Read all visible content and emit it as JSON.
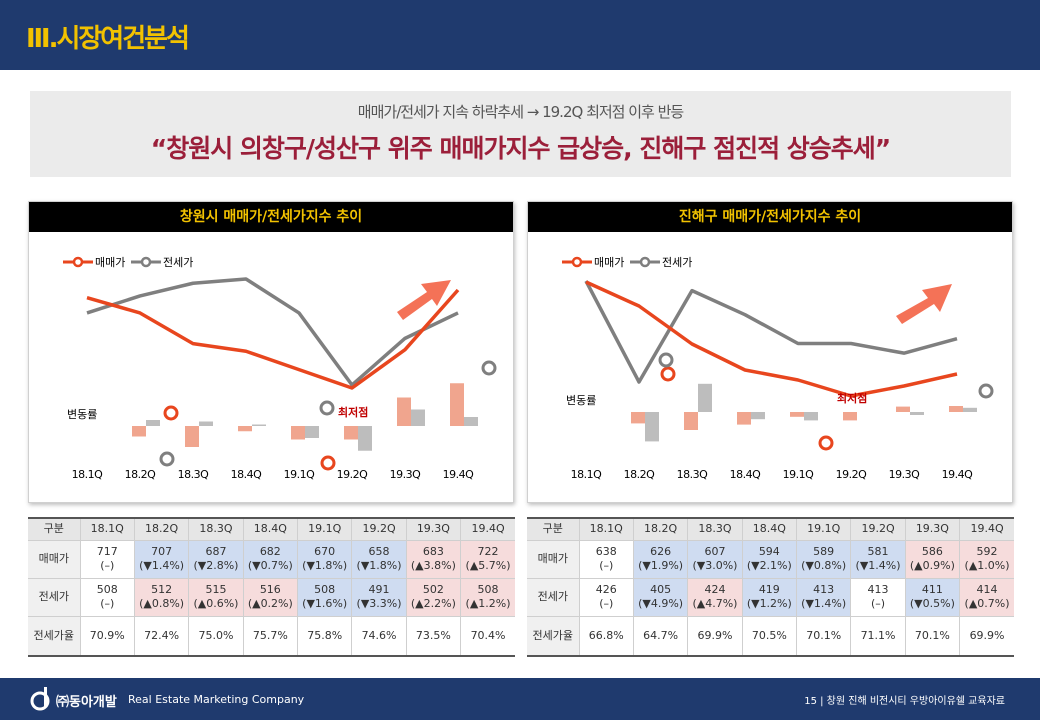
{
  "header": {
    "title": "Ⅲ.시장여건분석"
  },
  "banner": {
    "subtitle": "매매가/전세가 지속 하락추세 → 19.2Q 최저점 이후 반등",
    "headline": "“창원시 의창구/성산구 위주 매매가지수 급상승, 진해구 점진적 상승추세”"
  },
  "colors": {
    "sale": "#e8461e",
    "jeonse": "#7f7f7f",
    "up": "#f6dcdc",
    "down": "#cfdcf1",
    "accent": "#f2c200",
    "navy": "#1f3a6e"
  },
  "chart_data": [
    {
      "type": "line",
      "title": "창원시 매매가/전세가지수 추이",
      "categories": [
        "18.1Q",
        "18.2Q",
        "18.3Q",
        "18.4Q",
        "19.1Q",
        "19.2Q",
        "19.3Q",
        "19.4Q"
      ],
      "series": [
        {
          "name": "매매가",
          "values": [
            717,
            707,
            687,
            682,
            670,
            658,
            683,
            722
          ],
          "change": [
            0,
            -1.4,
            -2.8,
            -0.7,
            -1.8,
            -1.8,
            3.8,
            5.7
          ]
        },
        {
          "name": "전세가",
          "values": [
            508,
            512,
            515,
            516,
            508,
            491,
            502,
            508
          ],
          "change": [
            0,
            0.8,
            0.6,
            0.2,
            -1.6,
            -3.3,
            2.2,
            1.2
          ]
        }
      ],
      "change_label": "변동률",
      "low_label": "최저점",
      "low_index": 5
    },
    {
      "type": "line",
      "title": "진해구 매매가/전세가지수 추이",
      "categories": [
        "18.1Q",
        "18.2Q",
        "18.3Q",
        "18.4Q",
        "19.1Q",
        "19.2Q",
        "19.3Q",
        "19.4Q"
      ],
      "series": [
        {
          "name": "매매가",
          "values": [
            638,
            626,
            607,
            594,
            589,
            581,
            586,
            592
          ],
          "change": [
            0,
            -1.9,
            -3.0,
            -2.1,
            -0.8,
            -1.4,
            0.9,
            1.0
          ]
        },
        {
          "name": "전세가",
          "values": [
            426,
            405,
            424,
            419,
            413,
            413,
            411,
            414
          ],
          "change": [
            0,
            -4.9,
            4.7,
            -1.2,
            -1.4,
            0,
            -0.5,
            0.7
          ]
        }
      ],
      "change_label": "변동률",
      "low_label": "최저점",
      "low_index": 5
    }
  ],
  "tables": [
    {
      "header": [
        "구분",
        "18.1Q",
        "18.2Q",
        "18.3Q",
        "18.4Q",
        "19.1Q",
        "19.2Q",
        "19.3Q",
        "19.4Q"
      ],
      "rows": [
        {
          "label": "매매가",
          "cells": [
            {
              "v": "717",
              "c": "(–)",
              "t": ""
            },
            {
              "v": "707",
              "c": "(▼1.4%)",
              "t": "dn"
            },
            {
              "v": "687",
              "c": "(▼2.8%)",
              "t": "dn"
            },
            {
              "v": "682",
              "c": "(▼0.7%)",
              "t": "dn"
            },
            {
              "v": "670",
              "c": "(▼1.8%)",
              "t": "dn"
            },
            {
              "v": "658",
              "c": "(▼1.8%)",
              "t": "dn"
            },
            {
              "v": "683",
              "c": "(▲3.8%)",
              "t": "up"
            },
            {
              "v": "722",
              "c": "(▲5.7%)",
              "t": "up"
            }
          ]
        },
        {
          "label": "전세가",
          "cells": [
            {
              "v": "508",
              "c": "(–)",
              "t": ""
            },
            {
              "v": "512",
              "c": "(▲0.8%)",
              "t": "up"
            },
            {
              "v": "515",
              "c": "(▲0.6%)",
              "t": "up"
            },
            {
              "v": "516",
              "c": "(▲0.2%)",
              "t": "up"
            },
            {
              "v": "508",
              "c": "(▼1.6%)",
              "t": "dn"
            },
            {
              "v": "491",
              "c": "(▼3.3%)",
              "t": "dn"
            },
            {
              "v": "502",
              "c": "(▲2.2%)",
              "t": "up"
            },
            {
              "v": "508",
              "c": "(▲1.2%)",
              "t": "up"
            }
          ]
        },
        {
          "label": "전세가율",
          "cells": [
            {
              "v": "70.9%"
            },
            {
              "v": "72.4%"
            },
            {
              "v": "75.0%"
            },
            {
              "v": "75.7%"
            },
            {
              "v": "75.8%"
            },
            {
              "v": "74.6%"
            },
            {
              "v": "73.5%"
            },
            {
              "v": "70.4%"
            }
          ]
        }
      ]
    },
    {
      "header": [
        "구분",
        "18.1Q",
        "18.2Q",
        "18.3Q",
        "18.4Q",
        "19.1Q",
        "19.2Q",
        "19.3Q",
        "19.4Q"
      ],
      "rows": [
        {
          "label": "매매가",
          "cells": [
            {
              "v": "638",
              "c": "(–)",
              "t": ""
            },
            {
              "v": "626",
              "c": "(▼1.9%)",
              "t": "dn"
            },
            {
              "v": "607",
              "c": "(▼3.0%)",
              "t": "dn"
            },
            {
              "v": "594",
              "c": "(▼2.1%)",
              "t": "dn"
            },
            {
              "v": "589",
              "c": "(▼0.8%)",
              "t": "dn"
            },
            {
              "v": "581",
              "c": "(▼1.4%)",
              "t": "dn"
            },
            {
              "v": "586",
              "c": "(▲0.9%)",
              "t": "up"
            },
            {
              "v": "592",
              "c": "(▲1.0%)",
              "t": "up"
            }
          ]
        },
        {
          "label": "전세가",
          "cells": [
            {
              "v": "426",
              "c": "(–)",
              "t": ""
            },
            {
              "v": "405",
              "c": "(▼4.9%)",
              "t": "dn"
            },
            {
              "v": "424",
              "c": "(▲4.7%)",
              "t": "up"
            },
            {
              "v": "419",
              "c": "(▼1.2%)",
              "t": "dn"
            },
            {
              "v": "413",
              "c": "(▼1.4%)",
              "t": "dn"
            },
            {
              "v": "413",
              "c": "(–)",
              "t": ""
            },
            {
              "v": "411",
              "c": "(▼0.5%)",
              "t": "dn"
            },
            {
              "v": "414",
              "c": "(▲0.7%)",
              "t": "up"
            }
          ]
        },
        {
          "label": "전세가율",
          "cells": [
            {
              "v": "66.8%"
            },
            {
              "v": "64.7%"
            },
            {
              "v": "69.9%"
            },
            {
              "v": "70.5%"
            },
            {
              "v": "70.1%"
            },
            {
              "v": "71.1%"
            },
            {
              "v": "70.1%"
            },
            {
              "v": "69.9%"
            }
          ]
        }
      ]
    }
  ],
  "footer": {
    "brand": "㈜동아개발",
    "tagline": "Real Estate Marketing Company",
    "page": "15  |  창원 진해 비전시티 우방아이유쉘 교육자료"
  }
}
